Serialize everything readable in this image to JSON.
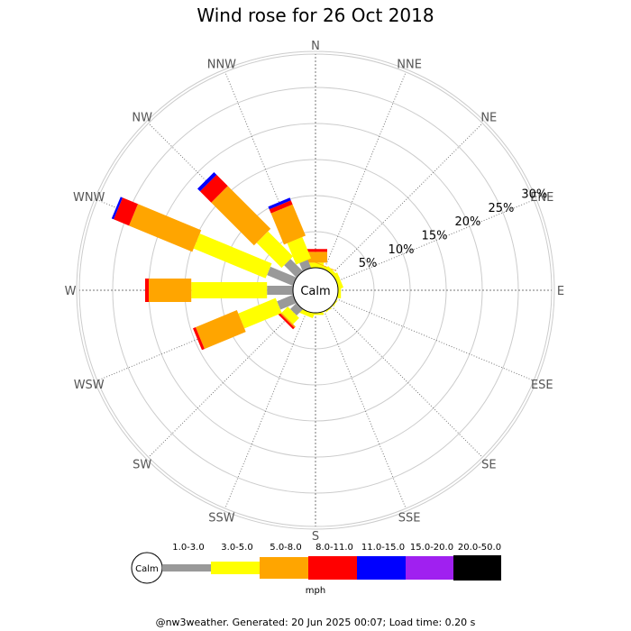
{
  "chart_data": {
    "type": "wind-rose",
    "title": "Wind rose for 26 Oct 2018",
    "directions": [
      "N",
      "NNE",
      "NE",
      "ENE",
      "E",
      "ESE",
      "SE",
      "SSE",
      "S",
      "SSW",
      "SW",
      "WSW",
      "W",
      "WNW",
      "NW",
      "NNW"
    ],
    "ring_labels": [
      "5%",
      "10%",
      "15%",
      "20%",
      "25%",
      "30%"
    ],
    "ring_values": [
      5,
      10,
      15,
      20,
      25,
      30
    ],
    "calm_label": "Calm",
    "unit_label": "mph",
    "bins": [
      {
        "label": "1.0-3.0",
        "color": "#999999"
      },
      {
        "label": "3.0-5.0",
        "color": "#ffff00"
      },
      {
        "label": "5.0-8.0",
        "color": "#ffa500"
      },
      {
        "label": "8.0-11.0",
        "color": "#ff0000"
      },
      {
        "label": "11.0-15.0",
        "color": "#0000ff"
      },
      {
        "label": "15.0-20.0",
        "color": "#a020f0"
      },
      {
        "label": "20.0-50.0",
        "color": "#000000"
      }
    ],
    "series": [
      {
        "direction": "N",
        "cumulative": [
          0,
          0.7,
          2.2,
          2.6
        ]
      },
      {
        "direction": "NNE",
        "cumulative": [
          0,
          0.4,
          0.5
        ]
      },
      {
        "direction": "NE",
        "cumulative": [
          0,
          0.5
        ]
      },
      {
        "direction": "ENE",
        "cumulative": [
          0,
          0.6
        ]
      },
      {
        "direction": "E",
        "cumulative": [
          0,
          0.4
        ]
      },
      {
        "direction": "ESE",
        "cumulative": [
          0,
          0.1
        ]
      },
      {
        "direction": "SE",
        "cumulative": [
          0,
          0.1
        ]
      },
      {
        "direction": "SSE",
        "cumulative": [
          0,
          0.1
        ]
      },
      {
        "direction": "S",
        "cumulative": [
          0,
          0.3
        ]
      },
      {
        "direction": "SSW",
        "cumulative": [
          0,
          0.6
        ]
      },
      {
        "direction": "SW",
        "cumulative": [
          1.2,
          2.4,
          2.6,
          2.9
        ]
      },
      {
        "direction": "WSW",
        "cumulative": [
          2.4,
          8.0,
          14.2,
          14.6
        ]
      },
      {
        "direction": "W",
        "cumulative": [
          3.6,
          14.1,
          20.0,
          20.5
        ]
      },
      {
        "direction": "WNW",
        "cumulative": [
          3.9,
          14.7,
          24.2,
          26.5,
          26.8
        ]
      },
      {
        "direction": "NW",
        "cumulative": [
          2.4,
          7.3,
          15.7,
          17.9,
          18.4
        ]
      },
      {
        "direction": "NNW",
        "cumulative": [
          1.2,
          4.4,
          9.1,
          9.7,
          10.1
        ]
      }
    ]
  },
  "footer": "@nw3weather. Generated: 20 Jun 2025 00:07; Load time: 0.20 s"
}
